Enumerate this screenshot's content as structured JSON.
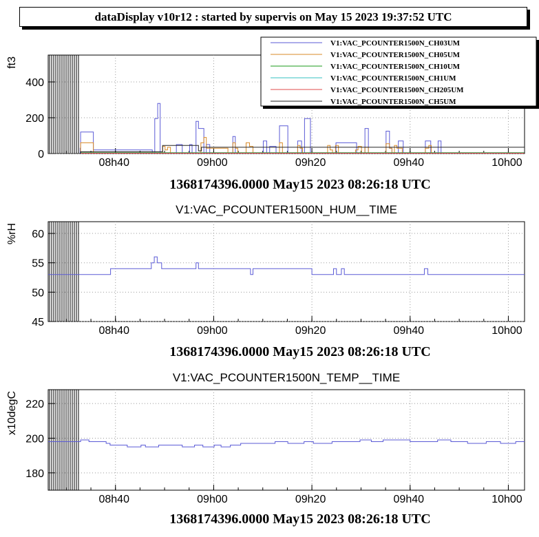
{
  "app": {
    "title": "dataDisplay v10r12 : started by supervis on May 15 2023 19:37:52 UTC"
  },
  "chart_data": [
    {
      "type": "line",
      "subtitle": "",
      "ylabel": "ft3",
      "xlabel": "1368174396.0000 May15 2023 08:26:18 UTC",
      "x_unit": "minutes since 08:26:18",
      "xlim": [
        0,
        97
      ],
      "ylim": [
        0,
        550
      ],
      "yticks": [
        0,
        200,
        400
      ],
      "xticks": [
        {
          "v": 13.7,
          "label": "08h40"
        },
        {
          "v": 33.7,
          "label": "09h00"
        },
        {
          "v": 53.7,
          "label": "09h20"
        },
        {
          "v": 73.7,
          "label": "09h40"
        },
        {
          "v": 93.7,
          "label": "10h00"
        }
      ],
      "grid": true,
      "legend_position": "top-right",
      "colors": {
        "CH03UM": "#5a5ad6",
        "CH05UM": "#d98a26",
        "CH10UM": "#1a9a1a",
        "CH1UM": "#33c2c2",
        "CH205UM": "#e24a4a",
        "CH5UM": "#222222"
      },
      "series": [
        {
          "name": "V1:VAC_PCOUNTER1500N_CH03UM",
          "color": "#5a5ad6",
          "x": [
            0,
            6.5,
            6.6,
            9.1,
            9.2,
            19,
            21.2,
            21.7,
            22.3,
            22.8,
            23.3,
            26.1,
            27.3,
            28.8,
            29.3,
            30.1,
            30.6,
            31.7,
            32.2,
            32.9,
            33.5,
            34.4,
            35.1,
            37.1,
            37.6,
            38.1,
            38.8,
            39.2,
            43.8,
            44.5,
            45.1,
            46.4,
            47.1,
            48.8,
            49.5,
            50.3,
            50.8,
            51.6,
            52.2,
            53.4,
            54.2,
            55.4,
            56.2,
            57.9,
            58.6,
            62.8,
            63.5,
            64.5,
            65.2,
            67,
            67.5,
            68.3,
            68.8,
            69.5,
            70,
            70.8,
            71.3,
            72.3,
            76.2,
            76.8,
            77.9,
            78.4,
            78.9,
            79.4,
            80,
            97
          ],
          "y": [
            0,
            30,
            120,
            120,
            20,
            20,
            0,
            195,
            280,
            0,
            0,
            50,
            0,
            50,
            0,
            180,
            140,
            0,
            50,
            0,
            0,
            0,
            0,
            0,
            95,
            0,
            0,
            0,
            70,
            0,
            40,
            0,
            155,
            0,
            0,
            0,
            70,
            0,
            195,
            0,
            0,
            0,
            0,
            0,
            60,
            0,
            0,
            140,
            0,
            0,
            0,
            0,
            125,
            30,
            0,
            0,
            70,
            0,
            0,
            70,
            0,
            0,
            0,
            70,
            0,
            0
          ]
        },
        {
          "name": "V1:VAC_PCOUNTER1500N_CH05UM",
          "color": "#d98a26",
          "x": [
            0,
            6.5,
            6.6,
            9.1,
            9.2,
            22.8,
            23.3,
            23.8,
            24.3,
            24.9,
            30.6,
            31.1,
            31.7,
            32.2,
            36.6,
            37.1,
            37.6,
            38.1,
            38.6,
            39.2,
            40.3,
            41,
            41.7,
            42.3,
            46.4,
            47.1,
            47.7,
            48.2,
            50.3,
            50.8,
            51.3,
            51.8,
            56.2,
            56.9,
            57.4,
            57.9,
            58.5,
            59.1,
            62.1,
            62.6,
            63.1,
            63.8,
            64.5,
            65.2,
            68.3,
            68.8,
            69.5,
            70,
            70.5,
            71,
            72.1,
            72.6,
            76.1,
            76.8,
            77.5,
            78,
            97
          ],
          "y": [
            0,
            0,
            60,
            60,
            0,
            0,
            40,
            20,
            35,
            0,
            0,
            60,
            90,
            30,
            0,
            0,
            60,
            30,
            0,
            0,
            60,
            40,
            0,
            0,
            0,
            60,
            0,
            0,
            0,
            45,
            30,
            0,
            0,
            45,
            20,
            0,
            45,
            0,
            0,
            20,
            40,
            0,
            35,
            0,
            0,
            55,
            30,
            0,
            45,
            30,
            0,
            0,
            0,
            30,
            45,
            0,
            0
          ]
        },
        {
          "name": "V1:VAC_PCOUNTER1500N_CH10UM",
          "color": "#1a9a1a",
          "x": [
            0,
            6.5,
            6.6,
            97
          ],
          "y": [
            0,
            0,
            5,
            0
          ]
        },
        {
          "name": "V1:VAC_PCOUNTER1500N_CH1UM",
          "color": "#33c2c2",
          "x": [
            0,
            6.5,
            6.6,
            97
          ],
          "y": [
            0,
            0,
            3,
            0
          ]
        },
        {
          "name": "V1:VAC_PCOUNTER1500N_CH205UM",
          "color": "#e24a4a",
          "x": [
            0,
            6.5,
            6.6,
            97
          ],
          "y": [
            0,
            0,
            2,
            0
          ]
        },
        {
          "name": "V1:VAC_PCOUNTER1500N_CH5UM",
          "color": "#222222",
          "x": [
            0,
            6.5,
            6.6,
            22.8,
            23.3,
            30.6,
            31.2,
            97
          ],
          "y": [
            0,
            0,
            10,
            10,
            45,
            15,
            35,
            0
          ]
        }
      ]
    },
    {
      "type": "line",
      "subtitle": "V1:VAC_PCOUNTER1500N_HUM__TIME",
      "ylabel": "%rH",
      "xlabel": "1368174396.0000 May15 2023 08:26:18 UTC",
      "x_unit": "minutes since 08:26:18",
      "xlim": [
        0,
        97
      ],
      "ylim": [
        45,
        62
      ],
      "yticks": [
        45,
        50,
        55,
        60
      ],
      "xticks": [
        {
          "v": 13.7,
          "label": "08h40"
        },
        {
          "v": 33.7,
          "label": "09h00"
        },
        {
          "v": 53.7,
          "label": "09h20"
        },
        {
          "v": 73.7,
          "label": "09h40"
        },
        {
          "v": 93.7,
          "label": "10h00"
        }
      ],
      "grid": true,
      "series": [
        {
          "name": "",
          "color": "#5a5ad6",
          "x": [
            0,
            6.5,
            6.6,
            12.7,
            21,
            21.6,
            22.2,
            23.1,
            30.1,
            30.6,
            41.2,
            41.7,
            53.7,
            58.1,
            58.7,
            59.7,
            60.3,
            76.6,
            77.3,
            97
          ],
          "y": [
            53,
            53,
            53,
            54,
            55,
            56,
            55,
            54,
            55,
            54,
            53,
            54,
            53,
            54,
            53,
            54,
            53,
            54,
            53,
            53
          ]
        }
      ]
    },
    {
      "type": "line",
      "subtitle": "V1:VAC_PCOUNTER1500N_TEMP__TIME",
      "ylabel": "x10degC",
      "xlabel": "1368174396.0000 May15 2023 08:26:18 UTC",
      "x_unit": "minutes since 08:26:18",
      "xlim": [
        0,
        97
      ],
      "ylim": [
        170,
        228
      ],
      "yticks": [
        180,
        200,
        220
      ],
      "xticks": [
        {
          "v": 13.7,
          "label": "08h40"
        },
        {
          "v": 33.7,
          "label": "09h00"
        },
        {
          "v": 53.7,
          "label": "09h20"
        },
        {
          "v": 73.7,
          "label": "09h40"
        },
        {
          "v": 93.7,
          "label": "10h00"
        }
      ],
      "grid": true,
      "series": [
        {
          "name": "",
          "color": "#5a5ad6",
          "x": [
            0,
            6.5,
            6.6,
            8.3,
            11.8,
            12.6,
            16.1,
            18.9,
            19.8,
            22.5,
            25,
            27.3,
            29.8,
            31.5,
            33.8,
            35.2,
            37.1,
            39.2,
            44.1,
            46.2,
            48.8,
            52.1,
            54,
            57.8,
            61,
            63.5,
            65.8,
            68.2,
            71.2,
            73.7,
            76.6,
            79.3,
            82,
            85.4,
            89.2,
            92.1,
            95.2,
            97
          ],
          "y": [
            198,
            198,
            199,
            198,
            197,
            196,
            195,
            196,
            195,
            196,
            196,
            195,
            196,
            195,
            196,
            195,
            196,
            197,
            197,
            198,
            197,
            198,
            197,
            198,
            198,
            199,
            198,
            199,
            199,
            198,
            198,
            199,
            198,
            197,
            198,
            197,
            198,
            198
          ]
        }
      ]
    }
  ]
}
